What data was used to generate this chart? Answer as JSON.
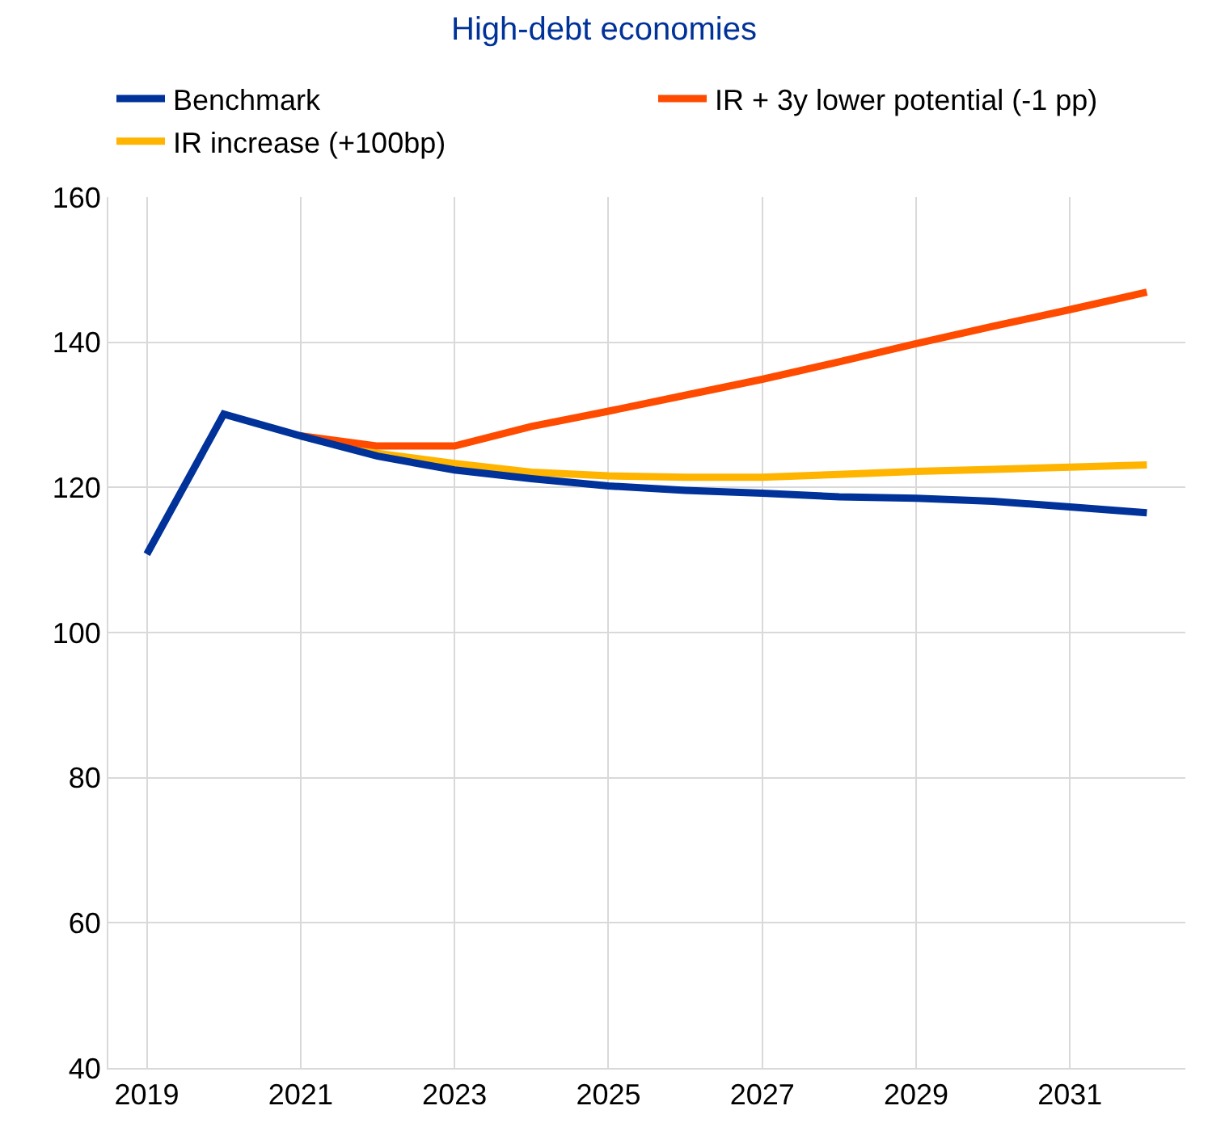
{
  "chart_data": {
    "type": "line",
    "title": "High-debt economies",
    "categories": [
      "2019",
      null,
      "2021",
      null,
      "2023",
      null,
      "2025",
      null,
      "2027",
      null,
      "2029",
      null,
      "2031",
      null
    ],
    "series": [
      {
        "name": "Benchmark",
        "color": "#003299",
        "values": [
          110.8,
          130.1,
          127.1,
          124.3,
          122.4,
          121.2,
          120.2,
          119.6,
          119.2,
          118.7,
          118.5,
          118.1,
          117.3,
          116.5
        ]
      },
      {
        "name": "IR + 3y lower potential (-1 pp)",
        "color": "#ff4b00",
        "values": [
          null,
          null,
          127.1,
          125.7,
          125.7,
          128.4,
          130.5,
          132.7,
          134.9,
          137.3,
          139.8,
          142.2,
          144.5,
          146.9
        ]
      },
      {
        "name": "IR increase (+100bp)",
        "color": "#ffb400",
        "values": [
          null,
          null,
          127.1,
          124.7,
          123.3,
          122.1,
          121.6,
          121.4,
          121.4,
          121.8,
          122.2,
          122.5,
          122.8,
          123.1
        ]
      }
    ],
    "ylim": [
      40,
      160
    ],
    "yticks": [
      40,
      60,
      80,
      100,
      120,
      140,
      160
    ],
    "grid": true,
    "legend": "top",
    "marker": "none",
    "line_style": "solid"
  }
}
